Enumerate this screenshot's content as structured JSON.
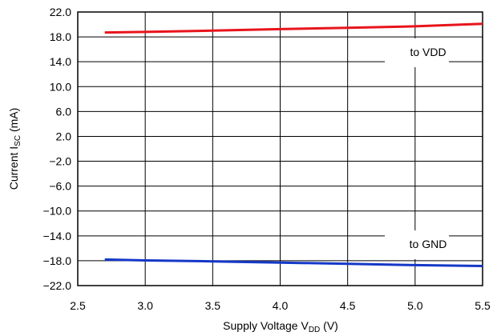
{
  "chart_data": {
    "type": "line",
    "xlabel": "Supply Voltage",
    "xlabel_symbol": "V",
    "xlabel_sub": "DD",
    "xlabel_unit": "(V)",
    "ylabel": "Current",
    "ylabel_symbol": "I",
    "ylabel_sub": "SC",
    "ylabel_unit": "(mA)",
    "xlim": [
      2.5,
      5.5
    ],
    "ylim": [
      -22.0,
      22.0
    ],
    "xticks": [
      "2.5",
      "3.0",
      "3.5",
      "4.0",
      "4.5",
      "5.0",
      "5.5"
    ],
    "yticks": [
      "22.0",
      "18.0",
      "14.0",
      "10.0",
      "6.0",
      "2.0",
      "−2.0",
      "−6.0",
      "−10.0",
      "−14.0",
      "−18.0",
      "−22.0"
    ],
    "grid": true,
    "series": [
      {
        "name": "to VDD",
        "color": "#e8141c",
        "x": [
          2.7,
          3.0,
          3.5,
          4.0,
          4.5,
          5.0,
          5.5
        ],
        "y": [
          18.7,
          18.8,
          19.0,
          19.25,
          19.45,
          19.7,
          20.1
        ]
      },
      {
        "name": "to GND",
        "color": "#1438c8",
        "x": [
          2.7,
          3.0,
          3.5,
          4.0,
          4.5,
          5.0,
          5.5
        ],
        "y": [
          -17.8,
          -17.95,
          -18.1,
          -18.3,
          -18.5,
          -18.7,
          -18.85
        ]
      }
    ],
    "annotations": [
      "to VDD",
      "to GND"
    ]
  }
}
